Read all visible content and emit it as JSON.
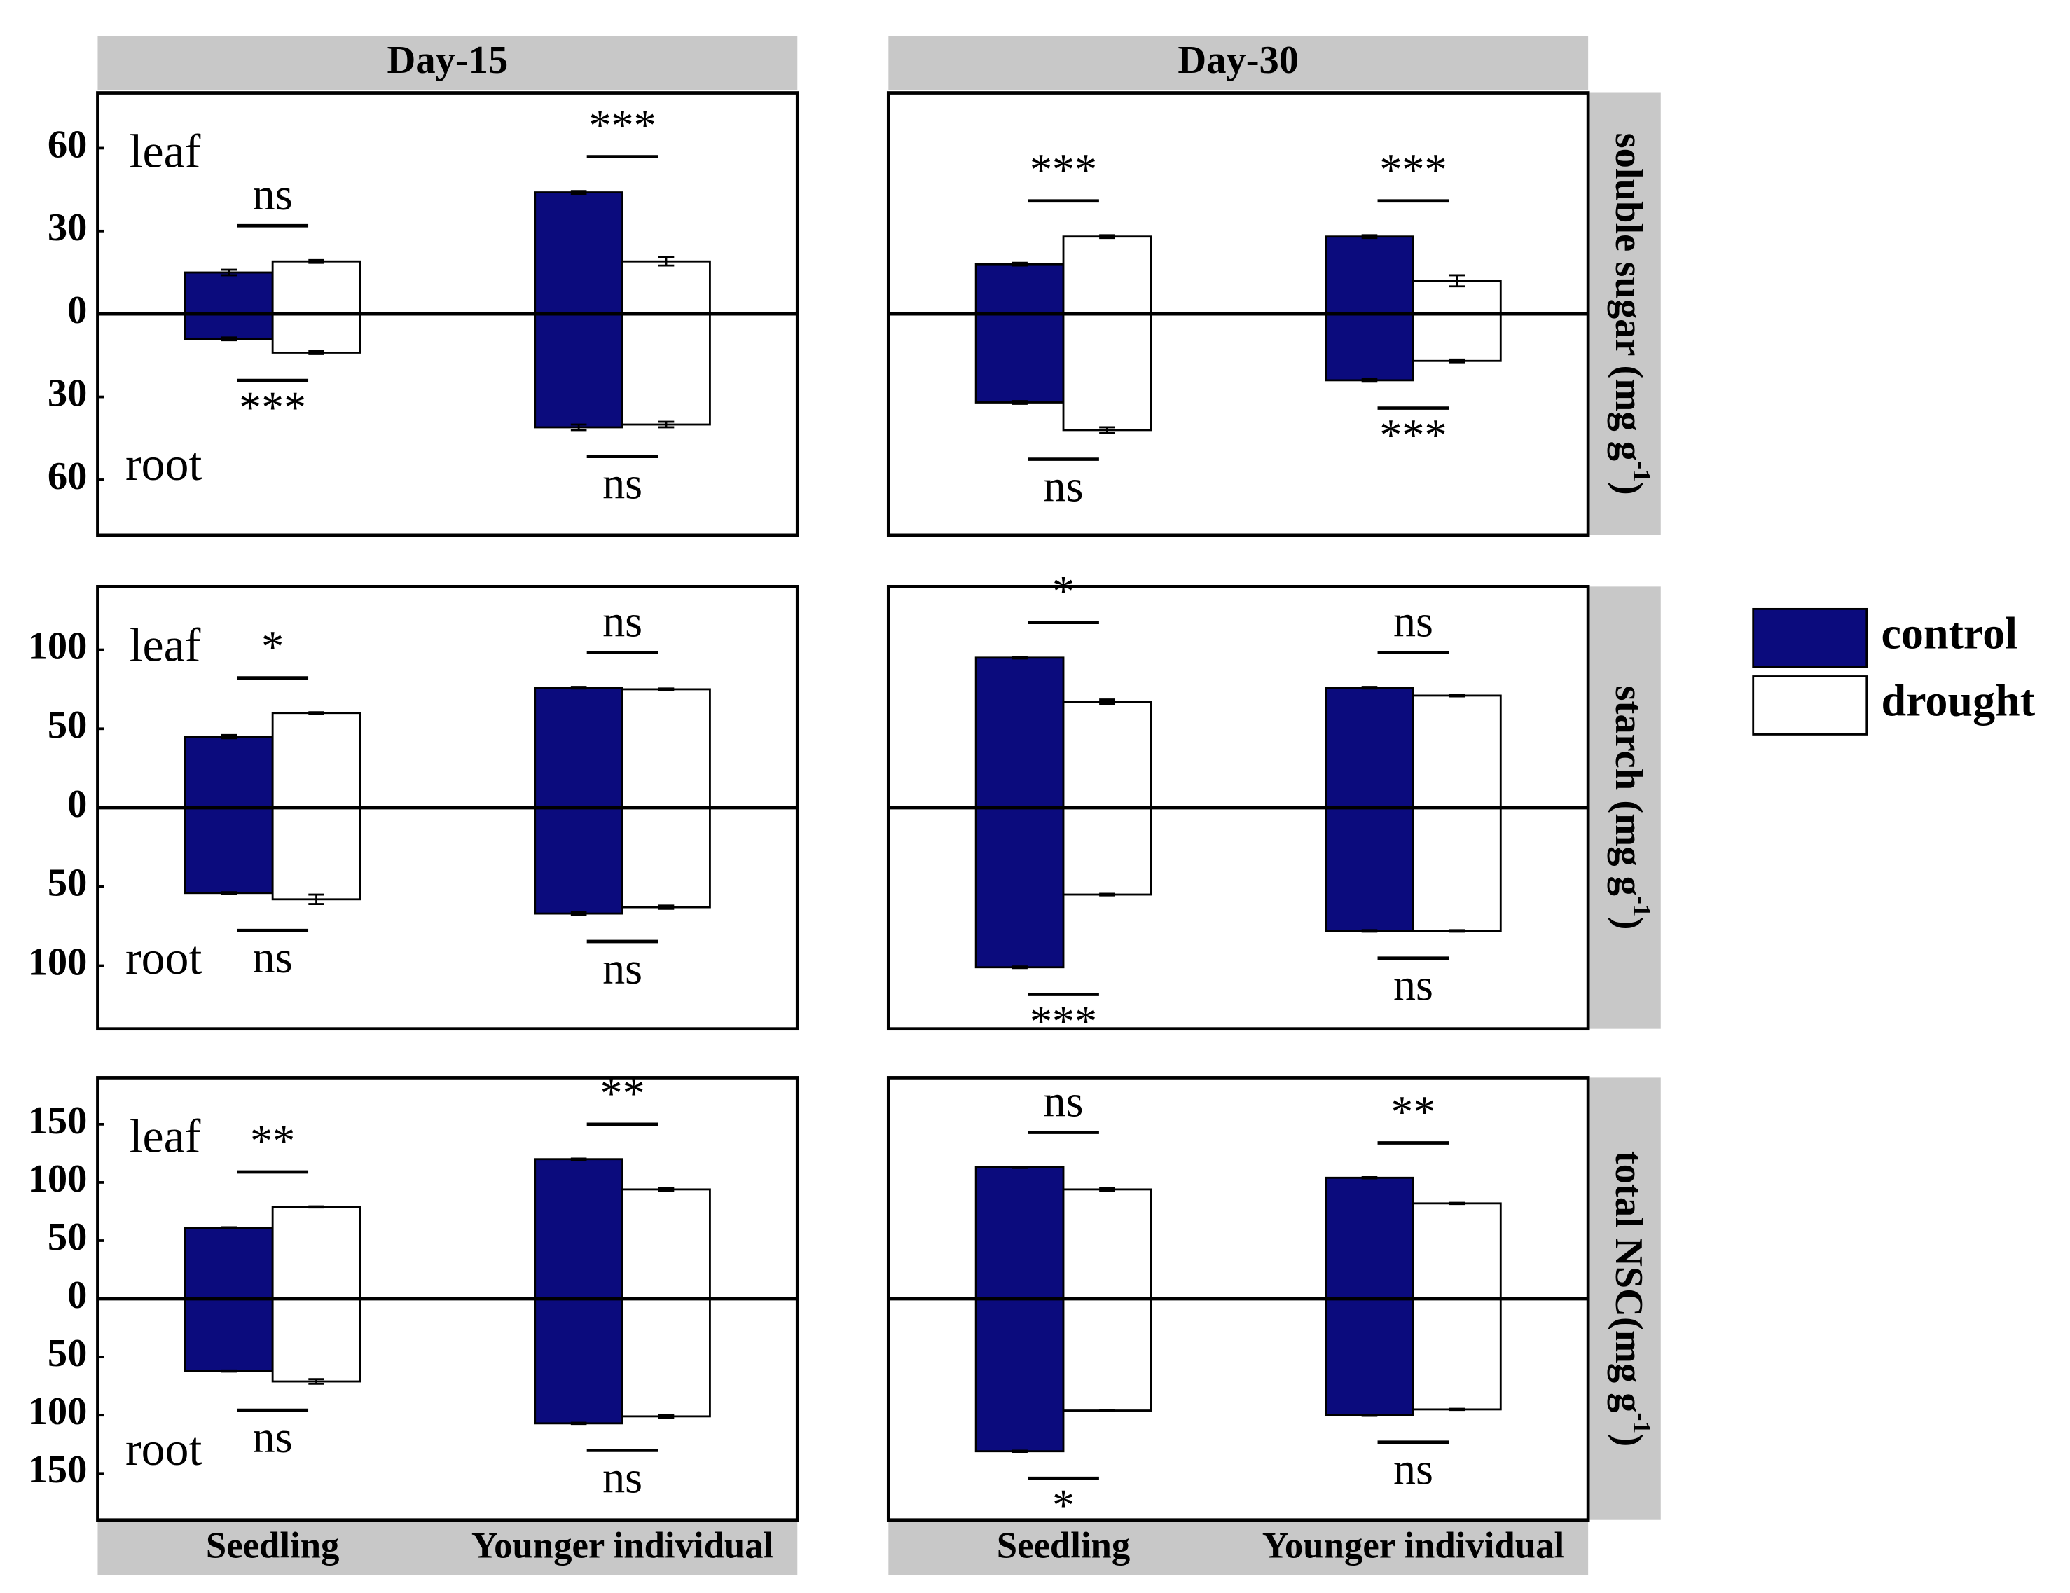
{
  "columns": [
    "Day-15",
    "Day-30"
  ],
  "rows": [
    {
      "text": "soluble sugar (mg g",
      "sup": "-1",
      "close": ")"
    },
    {
      "text": "starch (mg g",
      "sup": "-1",
      "close": ")"
    },
    {
      "text": "total NSC(mg g",
      "sup": "-1",
      "close": ")"
    }
  ],
  "x_categories": [
    "Seedling",
    "Younger individual"
  ],
  "chart_data": [
    {
      "type": "bar",
      "ylim": [
        -80,
        80
      ],
      "yticks": [
        60,
        30,
        0,
        {
          "value": -30,
          "label": "30"
        },
        {
          "value": -60,
          "label": "60"
        }
      ],
      "leaf_label": "leaf",
      "root_label": "root",
      "series": [
        {
          "name": "control",
          "color": "#0b0b7d",
          "leaf": [
            15,
            44
          ],
          "leaf_err": [
            1,
            0.5
          ],
          "root": [
            -9,
            -41
          ],
          "root_err": [
            0.5,
            1
          ]
        },
        {
          "name": "drought",
          "color": "#ffffff",
          "leaf": [
            19,
            19
          ],
          "leaf_err": [
            0.5,
            1.5
          ],
          "root": [
            -14,
            -40
          ],
          "root_err": [
            0.5,
            1
          ]
        }
      ],
      "leaf_sig": [
        "ns",
        "***"
      ],
      "root_sig": [
        "***",
        "ns"
      ]
    },
    {
      "type": "bar",
      "ylim": [
        -80,
        80
      ],
      "series": [
        {
          "name": "control",
          "color": "#0b0b7d",
          "leaf": [
            18,
            28
          ],
          "leaf_err": [
            0.5,
            0.5
          ],
          "root": [
            -32,
            -24
          ],
          "root_err": [
            0.5,
            0.5
          ]
        },
        {
          "name": "drought",
          "color": "#ffffff",
          "leaf": [
            28,
            12
          ],
          "leaf_err": [
            0.5,
            2
          ],
          "root": [
            -42,
            -17
          ],
          "root_err": [
            1,
            0.5
          ]
        }
      ],
      "leaf_sig": [
        "***",
        "***"
      ],
      "root_sig": [
        "ns",
        "***"
      ]
    },
    {
      "type": "bar",
      "ylim": [
        -140,
        140
      ],
      "yticks": [
        100,
        50,
        0,
        {
          "value": -50,
          "label": "50"
        },
        {
          "value": -100,
          "label": "100"
        }
      ],
      "leaf_label": "leaf",
      "root_label": "root",
      "series": [
        {
          "name": "control",
          "color": "#0b0b7d",
          "leaf": [
            45,
            76
          ],
          "leaf_err": [
            1,
            0.5
          ],
          "root": [
            -54,
            -67
          ],
          "root_err": [
            0.5,
            1
          ]
        },
        {
          "name": "drought",
          "color": "#ffffff",
          "leaf": [
            60,
            75
          ],
          "leaf_err": [
            0.5,
            0.5
          ],
          "root": [
            -58,
            -63
          ],
          "root_err": [
            3,
            1
          ]
        }
      ],
      "leaf_sig": [
        "*",
        "ns"
      ],
      "root_sig": [
        "ns",
        "ns"
      ]
    },
    {
      "type": "bar",
      "ylim": [
        -140,
        140
      ],
      "series": [
        {
          "name": "control",
          "color": "#0b0b7d",
          "leaf": [
            95,
            76
          ],
          "leaf_err": [
            0.5,
            0.5
          ],
          "root": [
            -101,
            -78
          ],
          "root_err": [
            0.5,
            0.5
          ]
        },
        {
          "name": "drought",
          "color": "#ffffff",
          "leaf": [
            67,
            71
          ],
          "leaf_err": [
            1.5,
            0.5
          ],
          "root": [
            -55,
            -78
          ],
          "root_err": [
            0.5,
            0.5
          ]
        }
      ],
      "leaf_sig": [
        "*",
        "ns"
      ],
      "root_sig": [
        "***",
        "ns"
      ]
    },
    {
      "type": "bar",
      "ylim": [
        -190,
        190
      ],
      "yticks": [
        150,
        100,
        50,
        0,
        {
          "value": -50,
          "label": "50"
        },
        {
          "value": -100,
          "label": "100"
        },
        {
          "value": -150,
          "label": "150"
        }
      ],
      "leaf_label": "leaf",
      "root_label": "root",
      "series": [
        {
          "name": "control",
          "color": "#0b0b7d",
          "leaf": [
            61,
            120
          ],
          "leaf_err": [
            0.5,
            0.5
          ],
          "root": [
            -62,
            -107
          ],
          "root_err": [
            0.5,
            0.5
          ]
        },
        {
          "name": "drought",
          "color": "#ffffff",
          "leaf": [
            79,
            94
          ],
          "leaf_err": [
            0.5,
            1
          ],
          "root": [
            -71,
            -101
          ],
          "root_err": [
            2,
            1
          ]
        }
      ],
      "leaf_sig": [
        "**",
        "**"
      ],
      "root_sig": [
        "ns",
        "ns"
      ]
    },
    {
      "type": "bar",
      "ylim": [
        -190,
        190
      ],
      "series": [
        {
          "name": "control",
          "color": "#0b0b7d",
          "leaf": [
            113,
            104
          ],
          "leaf_err": [
            0.5,
            0.5
          ],
          "root": [
            -131,
            -100
          ],
          "root_err": [
            0.5,
            0.5
          ]
        },
        {
          "name": "drought",
          "color": "#ffffff",
          "leaf": [
            94,
            82
          ],
          "leaf_err": [
            1,
            0.5
          ],
          "root": [
            -96,
            -95
          ],
          "root_err": [
            0.5,
            0.5
          ]
        }
      ],
      "leaf_sig": [
        "ns",
        "**"
      ],
      "root_sig": [
        "*",
        "ns"
      ]
    }
  ]
}
